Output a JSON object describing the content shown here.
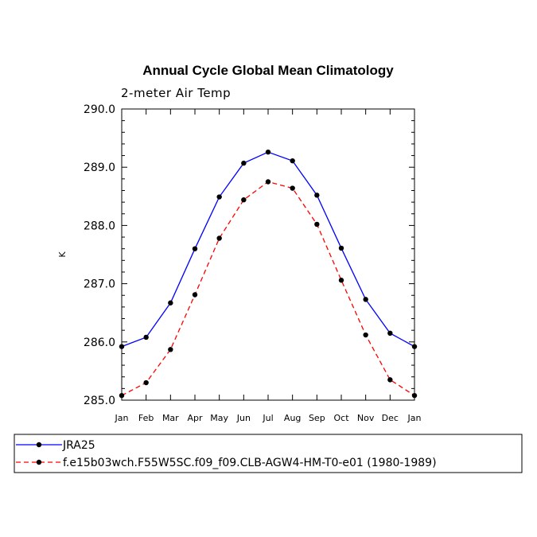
{
  "chart_data": {
    "type": "line",
    "title": "Annual Cycle Global Mean Climatology",
    "subtitle": "2-meter Air Temp",
    "xlabel": "",
    "ylabel": "K",
    "categories": [
      "Jan",
      "Feb",
      "Mar",
      "Apr",
      "May",
      "Jun",
      "Jul",
      "Aug",
      "Sep",
      "Oct",
      "Nov",
      "Dec",
      "Jan"
    ],
    "ylim": [
      285.0,
      290.0
    ],
    "yticks": [
      "285.0",
      "286.0",
      "287.0",
      "288.0",
      "289.0",
      "290.0"
    ],
    "series": [
      {
        "name": "JRA25",
        "color": "#0000ff",
        "style": "solid",
        "values": [
          285.92,
          286.08,
          286.67,
          287.6,
          288.49,
          289.07,
          289.26,
          289.11,
          288.52,
          287.61,
          286.73,
          286.15,
          285.92
        ]
      },
      {
        "name": "f.e15b03wch.F55W5SC.f09_f09.CLB-AGW4-HM-T0-e01 (1980-1989)",
        "color": "#ff0000",
        "style": "dashed",
        "values": [
          285.08,
          285.3,
          285.87,
          286.81,
          287.78,
          288.44,
          288.75,
          288.64,
          288.02,
          287.06,
          286.12,
          285.35,
          285.08
        ]
      }
    ],
    "legend_position": "bottom"
  }
}
